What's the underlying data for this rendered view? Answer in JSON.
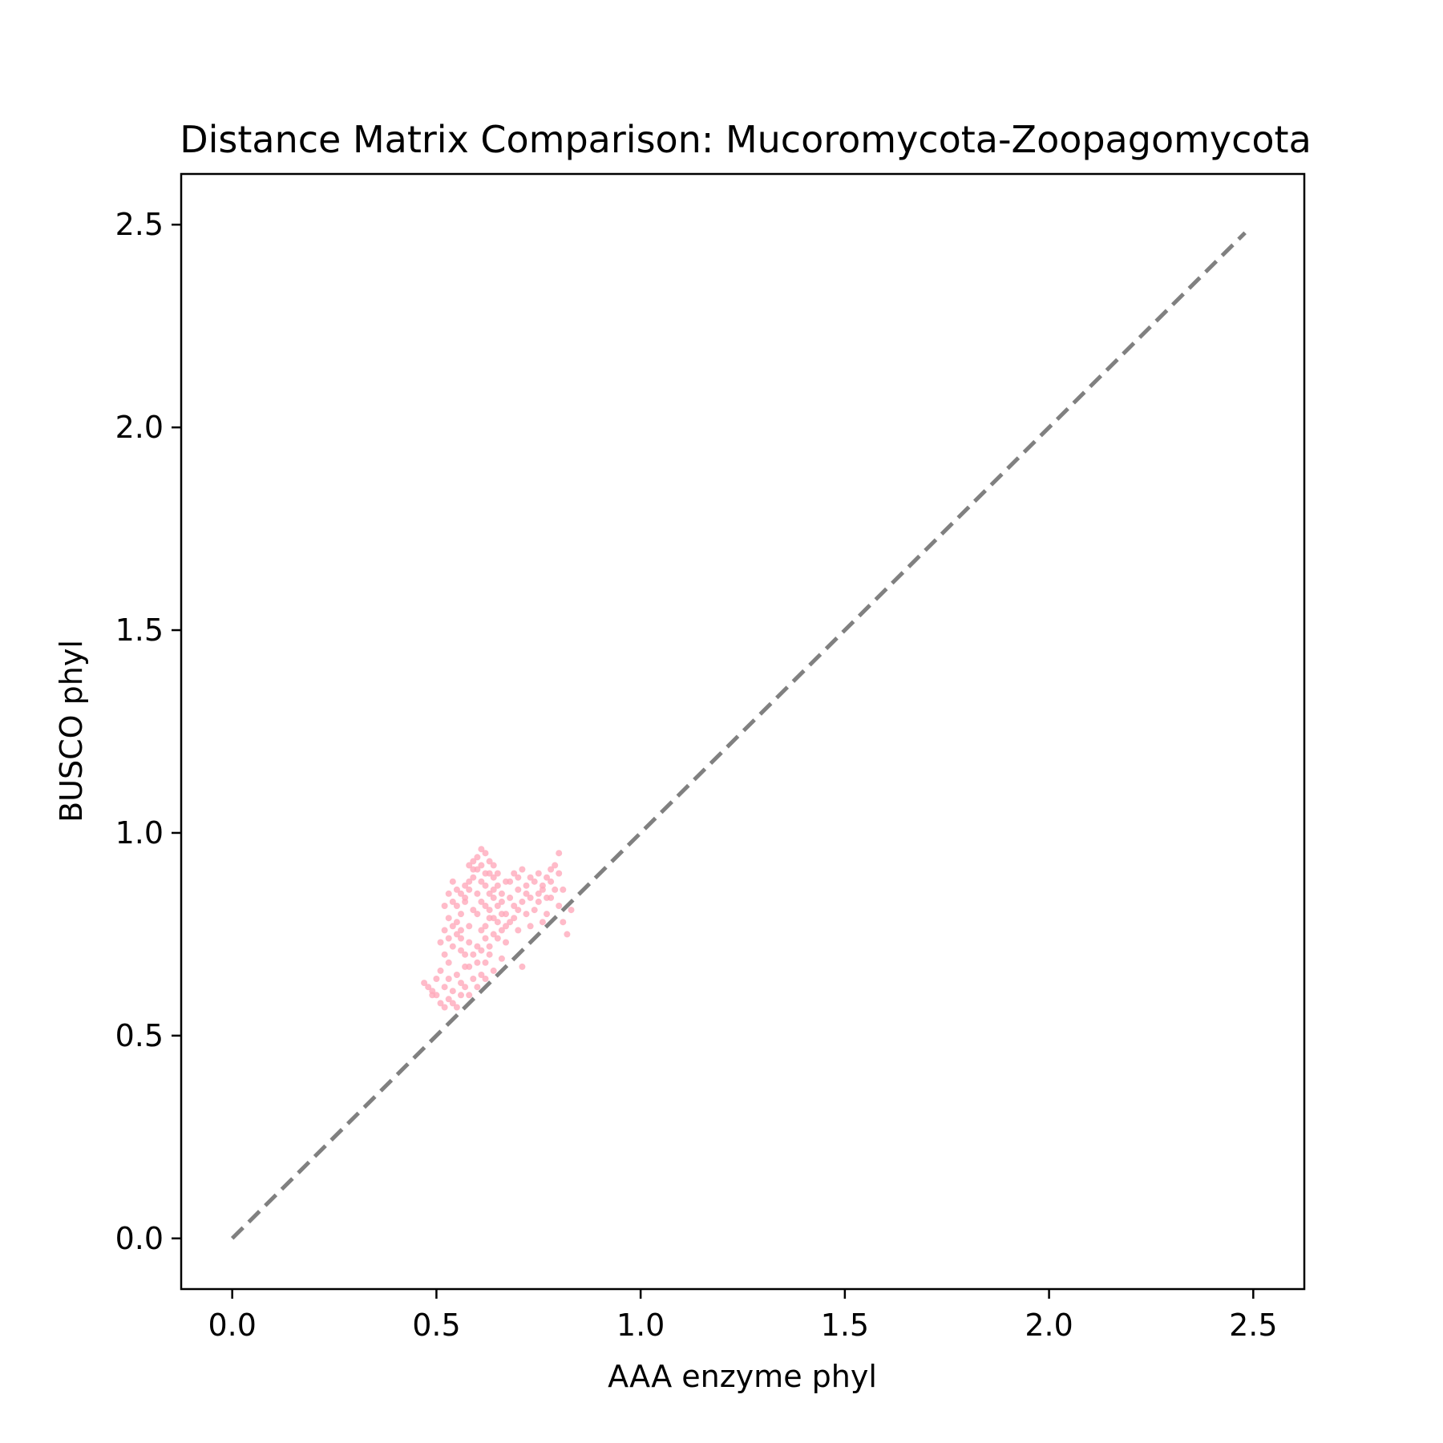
{
  "chart_data": {
    "type": "scatter",
    "title": "Distance Matrix Comparison: Mucoromycota-Zoopagomycota",
    "xlabel": "AAA enzyme phyl",
    "ylabel": "BUSCO phyl",
    "xlim": [
      -0.125,
      2.625
    ],
    "ylim": [
      -0.125,
      2.625
    ],
    "xticks": [
      0.0,
      0.5,
      1.0,
      1.5,
      2.0,
      2.5
    ],
    "yticks": [
      0.0,
      0.5,
      1.0,
      1.5,
      2.0,
      2.5
    ],
    "xtick_labels": [
      "0.0",
      "0.5",
      "1.0",
      "1.5",
      "2.0",
      "2.5"
    ],
    "ytick_labels": [
      "0.0",
      "0.5",
      "1.0",
      "1.5",
      "2.0",
      "2.5"
    ],
    "grid": false,
    "reference_line": {
      "style": "dashed",
      "color": "#808080",
      "x": [
        0.0,
        2.48
      ],
      "y": [
        0.0,
        2.48
      ]
    },
    "series": [
      {
        "color": "#ffaabb",
        "points": [
          [
            0.47,
            0.63
          ],
          [
            0.48,
            0.62
          ],
          [
            0.49,
            0.61
          ],
          [
            0.5,
            0.6
          ],
          [
            0.51,
            0.58
          ],
          [
            0.52,
            0.57
          ],
          [
            0.53,
            0.59
          ],
          [
            0.54,
            0.58
          ],
          [
            0.55,
            0.57
          ],
          [
            0.56,
            0.6
          ],
          [
            0.51,
            0.66
          ],
          [
            0.52,
            0.7
          ],
          [
            0.51,
            0.73
          ],
          [
            0.52,
            0.76
          ],
          [
            0.53,
            0.79
          ],
          [
            0.52,
            0.82
          ],
          [
            0.53,
            0.85
          ],
          [
            0.54,
            0.88
          ],
          [
            0.55,
            0.86
          ],
          [
            0.54,
            0.83
          ],
          [
            0.55,
            0.78
          ],
          [
            0.56,
            0.74
          ],
          [
            0.57,
            0.7
          ],
          [
            0.58,
            0.67
          ],
          [
            0.59,
            0.64
          ],
          [
            0.6,
            0.62
          ],
          [
            0.61,
            0.65
          ],
          [
            0.62,
            0.68
          ],
          [
            0.63,
            0.72
          ],
          [
            0.64,
            0.75
          ],
          [
            0.56,
            0.8
          ],
          [
            0.57,
            0.84
          ],
          [
            0.58,
            0.88
          ],
          [
            0.59,
            0.91
          ],
          [
            0.6,
            0.94
          ],
          [
            0.61,
            0.96
          ],
          [
            0.62,
            0.95
          ],
          [
            0.63,
            0.93
          ],
          [
            0.64,
            0.92
          ],
          [
            0.65,
            0.9
          ],
          [
            0.58,
            0.77
          ],
          [
            0.59,
            0.81
          ],
          [
            0.6,
            0.85
          ],
          [
            0.61,
            0.88
          ],
          [
            0.62,
            0.82
          ],
          [
            0.63,
            0.79
          ],
          [
            0.64,
            0.84
          ],
          [
            0.65,
            0.87
          ],
          [
            0.66,
            0.83
          ],
          [
            0.67,
            0.8
          ],
          [
            0.6,
            0.72
          ],
          [
            0.61,
            0.76
          ],
          [
            0.62,
            0.74
          ],
          [
            0.63,
            0.7
          ],
          [
            0.65,
            0.78
          ],
          [
            0.66,
            0.76
          ],
          [
            0.67,
            0.73
          ],
          [
            0.68,
            0.78
          ],
          [
            0.69,
            0.82
          ],
          [
            0.7,
            0.86
          ],
          [
            0.68,
            0.88
          ],
          [
            0.69,
            0.9
          ],
          [
            0.7,
            0.89
          ],
          [
            0.71,
            0.91
          ],
          [
            0.72,
            0.87
          ],
          [
            0.71,
            0.83
          ],
          [
            0.72,
            0.8
          ],
          [
            0.73,
            0.84
          ],
          [
            0.74,
            0.88
          ],
          [
            0.75,
            0.9
          ],
          [
            0.74,
            0.81
          ],
          [
            0.75,
            0.85
          ],
          [
            0.76,
            0.87
          ],
          [
            0.77,
            0.89
          ],
          [
            0.78,
            0.91
          ],
          [
            0.79,
            0.92
          ],
          [
            0.8,
            0.9
          ],
          [
            0.8,
            0.95
          ],
          [
            0.78,
            0.84
          ],
          [
            0.79,
            0.86
          ],
          [
            0.8,
            0.82
          ],
          [
            0.81,
            0.78
          ],
          [
            0.82,
            0.75
          ],
          [
            0.83,
            0.81
          ],
          [
            0.81,
            0.86
          ],
          [
            0.77,
            0.8
          ],
          [
            0.76,
            0.78
          ],
          [
            0.73,
            0.77
          ],
          [
            0.7,
            0.76
          ],
          [
            0.71,
            0.67
          ],
          [
            0.66,
            0.69
          ],
          [
            0.64,
            0.66
          ],
          [
            0.62,
            0.64
          ],
          [
            0.57,
            0.62
          ],
          [
            0.55,
            0.65
          ],
          [
            0.53,
            0.68
          ],
          [
            0.5,
            0.64
          ],
          [
            0.49,
            0.6
          ],
          [
            0.54,
            0.72
          ],
          [
            0.56,
            0.76
          ],
          [
            0.57,
            0.83
          ],
          [
            0.58,
            0.86
          ],
          [
            0.59,
            0.89
          ],
          [
            0.6,
            0.8
          ],
          [
            0.61,
            0.83
          ],
          [
            0.62,
            0.87
          ],
          [
            0.63,
            0.9
          ],
          [
            0.64,
            0.86
          ],
          [
            0.65,
            0.82
          ],
          [
            0.66,
            0.85
          ],
          [
            0.67,
            0.88
          ],
          [
            0.68,
            0.84
          ],
          [
            0.69,
            0.79
          ],
          [
            0.7,
            0.81
          ],
          [
            0.72,
            0.85
          ],
          [
            0.73,
            0.89
          ],
          [
            0.75,
            0.83
          ],
          [
            0.76,
            0.86
          ],
          [
            0.77,
            0.84
          ],
          [
            0.78,
            0.88
          ],
          [
            0.58,
            0.73
          ],
          [
            0.59,
            0.7
          ],
          [
            0.6,
            0.68
          ],
          [
            0.61,
            0.71
          ],
          [
            0.62,
            0.77
          ],
          [
            0.63,
            0.81
          ],
          [
            0.64,
            0.79
          ],
          [
            0.65,
            0.74
          ],
          [
            0.66,
            0.8
          ],
          [
            0.67,
            0.77
          ],
          [
            0.55,
            0.82
          ],
          [
            0.56,
            0.85
          ],
          [
            0.57,
            0.87
          ],
          [
            0.58,
            0.92
          ],
          [
            0.59,
            0.93
          ],
          [
            0.6,
            0.91
          ],
          [
            0.61,
            0.92
          ],
          [
            0.62,
            0.9
          ],
          [
            0.63,
            0.85
          ],
          [
            0.64,
            0.89
          ],
          [
            0.53,
            0.74
          ],
          [
            0.54,
            0.77
          ],
          [
            0.55,
            0.75
          ],
          [
            0.56,
            0.71
          ],
          [
            0.57,
            0.67
          ],
          [
            0.52,
            0.62
          ],
          [
            0.53,
            0.64
          ],
          [
            0.54,
            0.61
          ],
          [
            0.56,
            0.63
          ],
          [
            0.58,
            0.6
          ]
        ]
      }
    ]
  }
}
